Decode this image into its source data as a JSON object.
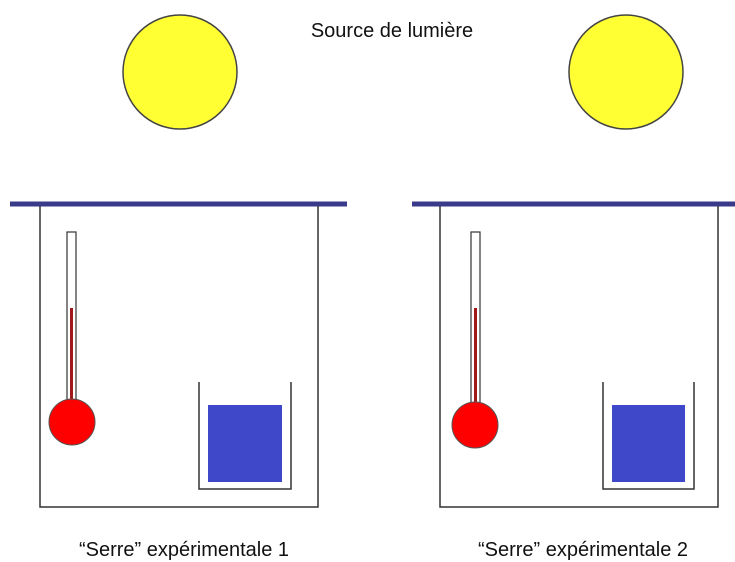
{
  "title": "Source de lumière",
  "greenhouses": [
    {
      "label": "“Serre” expérimentale 1"
    },
    {
      "label": "“Serre” expérimentale 2"
    }
  ]
}
